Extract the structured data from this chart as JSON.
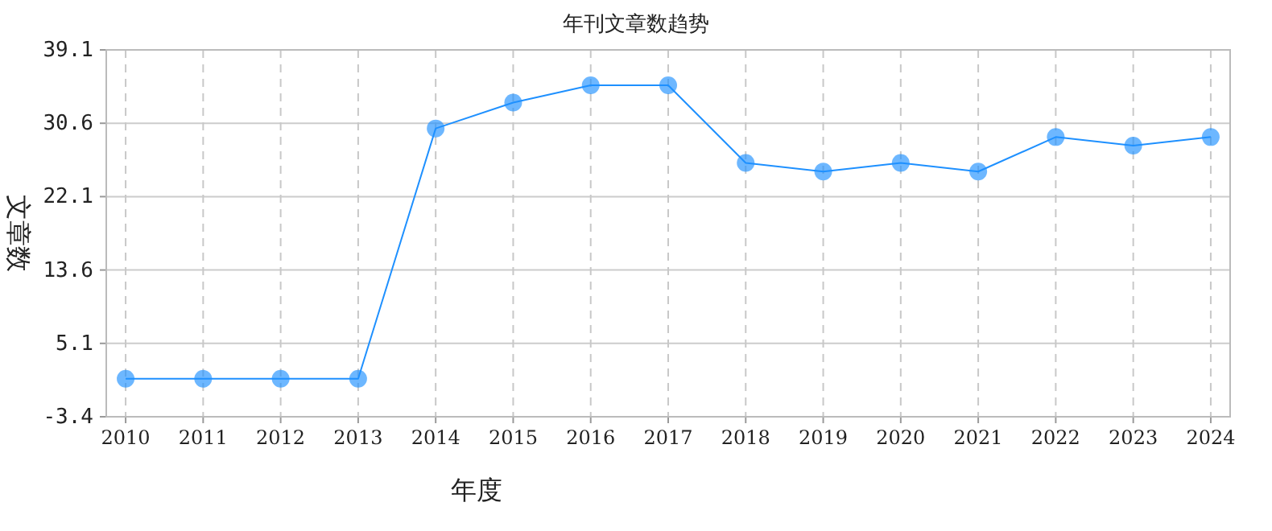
{
  "chart_data": {
    "type": "line",
    "title": "年刊文章数趋势",
    "xlabel": "年度",
    "ylabel": "文章数",
    "categories": [
      "2010",
      "2011",
      "2012",
      "2013",
      "2014",
      "2015",
      "2016",
      "2017",
      "2018",
      "2019",
      "2020",
      "2021",
      "2022",
      "2023",
      "2024"
    ],
    "series": [
      {
        "color": "#1e90ff",
        "values": [
          1,
          1,
          1,
          1,
          30,
          33,
          35,
          35,
          26,
          25,
          26,
          25,
          29,
          28,
          29
        ]
      }
    ],
    "ylim": [
      -3.4,
      39.1
    ],
    "yticks": [
      -3.4,
      5.1,
      13.6,
      22.1,
      30.6,
      39.1
    ],
    "grid": true,
    "marker": "circle",
    "line_style": "solid"
  }
}
